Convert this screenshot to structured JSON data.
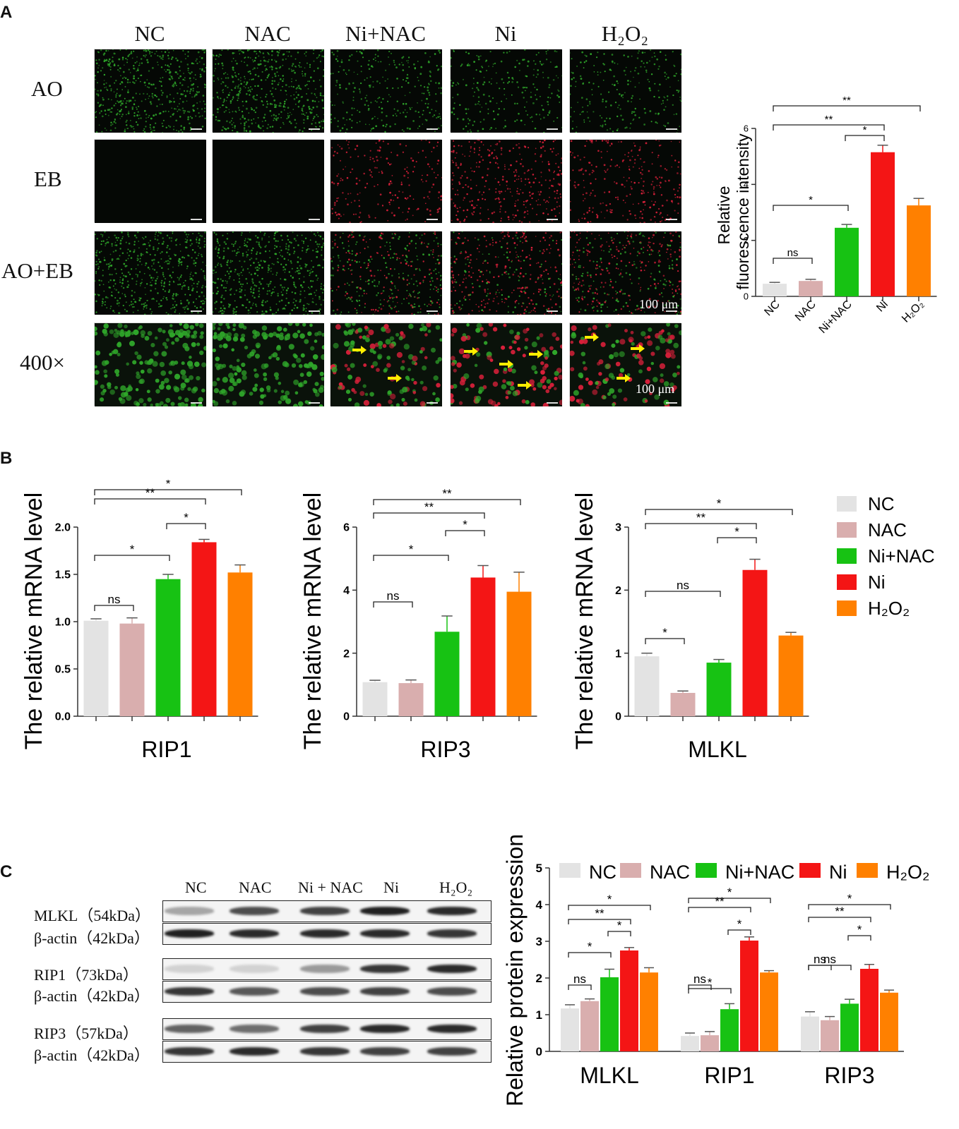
{
  "panels": {
    "a": "A",
    "b": "B",
    "c": "C"
  },
  "panelA": {
    "columns": [
      "NC",
      "NAC",
      "Ni+NAC",
      "Ni",
      "H₂O₂"
    ],
    "rows": [
      "AO",
      "EB",
      "AO+EB",
      "400×"
    ],
    "scale_bar": "100 μm",
    "green": "#2fa62a",
    "red": "#d9203a",
    "arrow_color": "#ffee00"
  },
  "colors": {
    "NC": "#e3e3e3",
    "NAC": "#d9aeae",
    "Ni+NAC": "#17c213",
    "Ni": "#f41515",
    "H2O2": "#ff8000"
  },
  "legendB": [
    "NC",
    "NAC",
    "Ni+NAC",
    "Ni",
    "H₂O₂"
  ],
  "legendC": [
    "NC",
    "NAC",
    "Ni+NAC",
    "Ni",
    "H₂O₂"
  ],
  "blot": {
    "headers": [
      "NC",
      "NAC",
      "Ni + NAC",
      "Ni",
      "H₂O₂"
    ],
    "labels": [
      "MLKL（54kDa）",
      "β-actin（42kDa）",
      "RIP1（73kDa）",
      "β-actin（42kDa）",
      "RIP3（57kDa）",
      "β-actin（42kDa）"
    ]
  },
  "chart_data": [
    {
      "id": "A-fluor",
      "type": "bar",
      "categories": [
        "NC",
        "NAC",
        "Ni+NAC",
        "Ni",
        "H₂O₂"
      ],
      "values": [
        0.45,
        0.55,
        2.45,
        5.15,
        3.25
      ],
      "errors": [
        0.05,
        0.06,
        0.12,
        0.25,
        0.25
      ],
      "ylabel": "Relative fluorescence intensity",
      "ylabel_lines": [
        "Relative",
        "fluorescence intensity"
      ],
      "ylim": [
        0,
        6
      ],
      "yticks": [
        0,
        2,
        4,
        6
      ],
      "sig": [
        {
          "from": 0,
          "to": 1,
          "label": "ns"
        },
        {
          "from": 0,
          "to": 2,
          "label": "*"
        },
        {
          "from": 2,
          "to": 3,
          "label": "*"
        },
        {
          "from": 0,
          "to": 3,
          "label": "**"
        },
        {
          "from": 0,
          "to": 4,
          "label": "**"
        }
      ]
    },
    {
      "id": "B-RIP1",
      "type": "bar",
      "categories": [
        "NC",
        "NAC",
        "Ni+NAC",
        "Ni",
        "H₂O₂"
      ],
      "values": [
        1.01,
        0.98,
        1.45,
        1.84,
        1.52
      ],
      "errors": [
        0.02,
        0.06,
        0.05,
        0.03,
        0.08
      ],
      "xlabel": "RIP1",
      "ylabel": "The relative mRNA level",
      "ylim": [
        0,
        2.0
      ],
      "yticks": [
        "0.0",
        "0.5",
        "1.0",
        "1.5",
        "2.0"
      ],
      "sig": [
        {
          "from": 0,
          "to": 1,
          "label": "ns"
        },
        {
          "from": 0,
          "to": 2,
          "label": "*"
        },
        {
          "from": 2,
          "to": 3,
          "label": "*"
        },
        {
          "from": 0,
          "to": 3,
          "label": "**"
        },
        {
          "from": 0,
          "to": 4,
          "label": "*"
        }
      ]
    },
    {
      "id": "B-RIP3",
      "type": "bar",
      "categories": [
        "NC",
        "NAC",
        "Ni+NAC",
        "Ni",
        "H₂O₂"
      ],
      "values": [
        1.08,
        1.05,
        2.68,
        4.4,
        3.95
      ],
      "errors": [
        0.06,
        0.1,
        0.5,
        0.38,
        0.62
      ],
      "xlabel": "RIP3",
      "ylabel": "The relative mRNA level",
      "ylim": [
        0,
        6
      ],
      "yticks": [
        "0",
        "2",
        "4",
        "6"
      ],
      "sig": [
        {
          "from": 0,
          "to": 1,
          "label": "ns"
        },
        {
          "from": 0,
          "to": 2,
          "label": "*"
        },
        {
          "from": 2,
          "to": 3,
          "label": "*"
        },
        {
          "from": 0,
          "to": 3,
          "label": "**"
        },
        {
          "from": 0,
          "to": 4,
          "label": "**"
        }
      ]
    },
    {
      "id": "B-MLKL",
      "type": "bar",
      "categories": [
        "NC",
        "NAC",
        "Ni+NAC",
        "Ni",
        "H₂O₂"
      ],
      "values": [
        0.95,
        0.37,
        0.85,
        2.32,
        1.28
      ],
      "errors": [
        0.05,
        0.03,
        0.05,
        0.17,
        0.05
      ],
      "xlabel": "MLKL",
      "ylabel": "The relative mRNA level",
      "ylim": [
        0,
        3
      ],
      "yticks": [
        "0",
        "1",
        "2",
        "3"
      ],
      "sig": [
        {
          "from": 0,
          "to": 1,
          "label": "*"
        },
        {
          "from": 0,
          "to": 2,
          "label": "ns"
        },
        {
          "from": 2,
          "to": 3,
          "label": "*"
        },
        {
          "from": 0,
          "to": 3,
          "label": "**"
        },
        {
          "from": 0,
          "to": 4,
          "label": "*"
        }
      ]
    },
    {
      "id": "C-protein",
      "type": "bar",
      "groups": [
        "MLKL",
        "RIP1",
        "RIP3"
      ],
      "series_order": [
        "NC",
        "NAC",
        "Ni+NAC",
        "Ni",
        "H₂O₂"
      ],
      "values": [
        [
          1.17,
          1.37,
          2.02,
          2.75,
          2.15
        ],
        [
          0.42,
          0.44,
          1.15,
          3.02,
          2.15
        ],
        [
          0.95,
          0.85,
          1.3,
          2.25,
          1.6
        ]
      ],
      "errors": [
        [
          0.1,
          0.06,
          0.22,
          0.08,
          0.13
        ],
        [
          0.08,
          0.1,
          0.15,
          0.1,
          0.05
        ],
        [
          0.13,
          0.1,
          0.12,
          0.12,
          0.07
        ]
      ],
      "ylabel": "Relative protein expression",
      "ylim": [
        0,
        5
      ],
      "yticks": [
        "0",
        "1",
        "2",
        "3",
        "4",
        "5"
      ],
      "sig": [
        [
          {
            "from": 0,
            "to": 1,
            "label": "ns"
          },
          {
            "from": 0,
            "to": 2,
            "label": "*"
          },
          {
            "from": 2,
            "to": 3,
            "label": "*"
          },
          {
            "from": 0,
            "to": 3,
            "label": "**"
          },
          {
            "from": 0,
            "to": 4,
            "label": "*"
          }
        ],
        [
          {
            "from": 0,
            "to": 1,
            "label": "ns"
          },
          {
            "from": 0,
            "to": 2,
            "label": "*"
          },
          {
            "from": 2,
            "to": 3,
            "label": "*"
          },
          {
            "from": 0,
            "to": 3,
            "label": "**"
          },
          {
            "from": 0,
            "to": 4,
            "label": "*"
          }
        ],
        [
          {
            "from": 0,
            "to": 1,
            "label": "ns"
          },
          {
            "from": 0,
            "to": 2,
            "label": "ns"
          },
          {
            "from": 2,
            "to": 3,
            "label": "*"
          },
          {
            "from": 0,
            "to": 3,
            "label": "**"
          },
          {
            "from": 0,
            "to": 4,
            "label": "*"
          }
        ]
      ]
    }
  ]
}
